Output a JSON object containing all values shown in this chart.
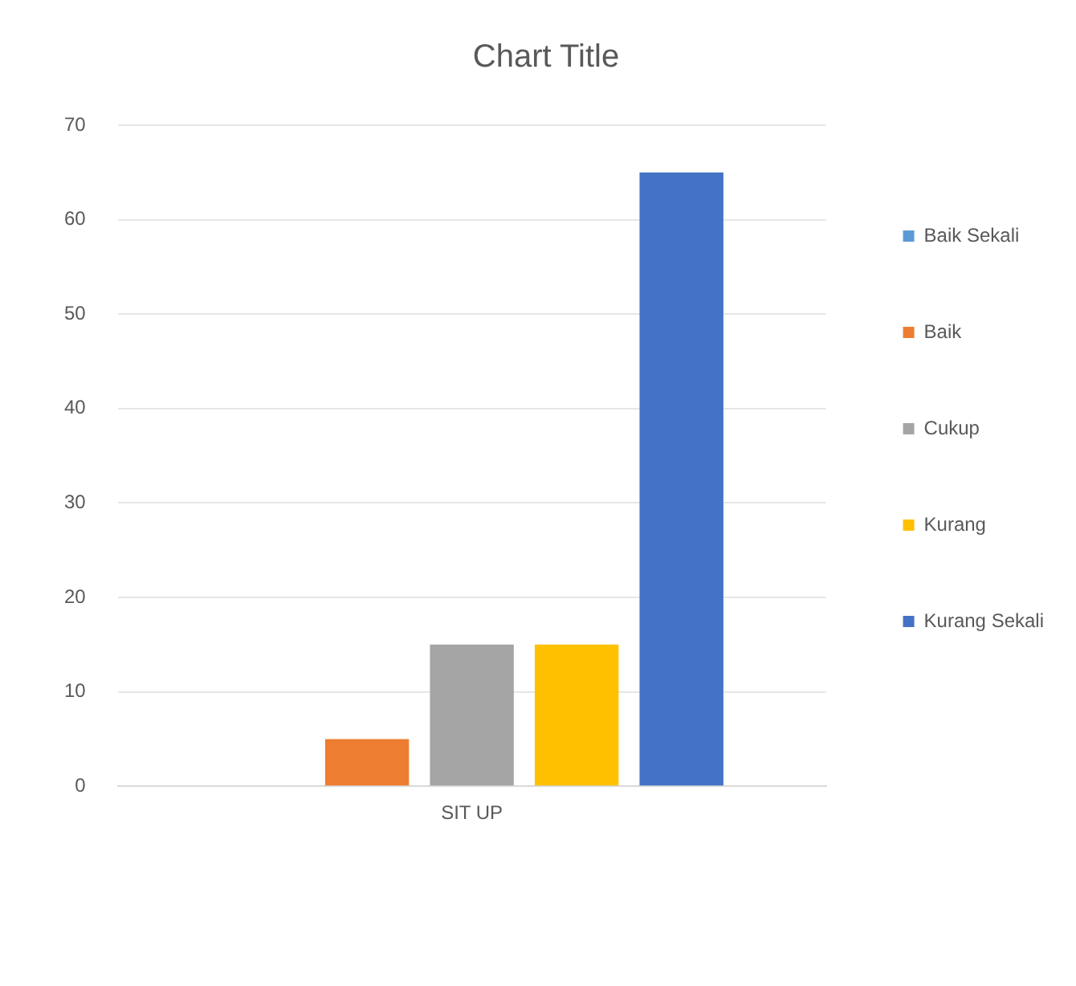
{
  "chart_data": {
    "type": "bar",
    "title": "Chart Title",
    "categories": [
      "SIT UP"
    ],
    "series": [
      {
        "name": "Baik Sekali",
        "color": "#5b9bd5",
        "values": [
          0
        ]
      },
      {
        "name": "Baik",
        "color": "#ed7d31",
        "values": [
          5
        ]
      },
      {
        "name": "Cukup",
        "color": "#a5a5a5",
        "values": [
          15
        ]
      },
      {
        "name": "Kurang",
        "color": "#ffc000",
        "values": [
          15
        ]
      },
      {
        "name": "Kurang Sekali",
        "color": "#4472c4",
        "values": [
          65
        ]
      }
    ],
    "ylim": [
      0,
      70
    ],
    "yticks": [
      0,
      10,
      20,
      30,
      40,
      50,
      60,
      70
    ],
    "grid": "y",
    "legend": "right"
  }
}
